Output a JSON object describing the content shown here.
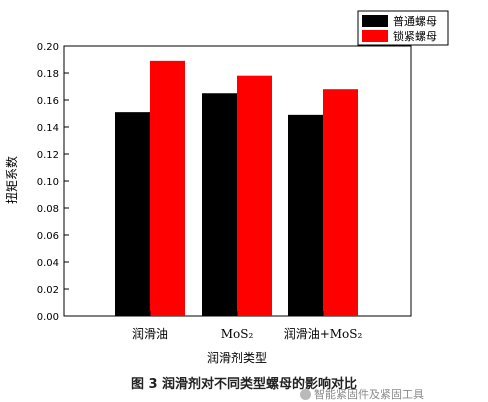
{
  "chart_data": {
    "type": "bar",
    "categories": [
      "润滑油",
      "MoS₂",
      "润滑油+MoS₂"
    ],
    "series": [
      {
        "name": "普通螺母",
        "color": "#000000",
        "values": [
          0.151,
          0.165,
          0.149
        ]
      },
      {
        "name": "锁紧螺母",
        "color": "#ff0000",
        "values": [
          0.189,
          0.178,
          0.168
        ]
      }
    ],
    "xlabel": "润滑剂类型",
    "ylabel": "扭矩系数",
    "ylim": [
      0,
      0.2
    ],
    "yticks": [
      "0.00",
      "0.02",
      "0.04",
      "0.06",
      "0.08",
      "0.10",
      "0.12",
      "0.14",
      "0.16",
      "0.18",
      "0.20"
    ],
    "legend_position": "top-right",
    "grid": false
  },
  "caption": "图 3  润滑剂对不同类型螺母的影响对比",
  "watermark": "智能紧固件及紧固工具"
}
